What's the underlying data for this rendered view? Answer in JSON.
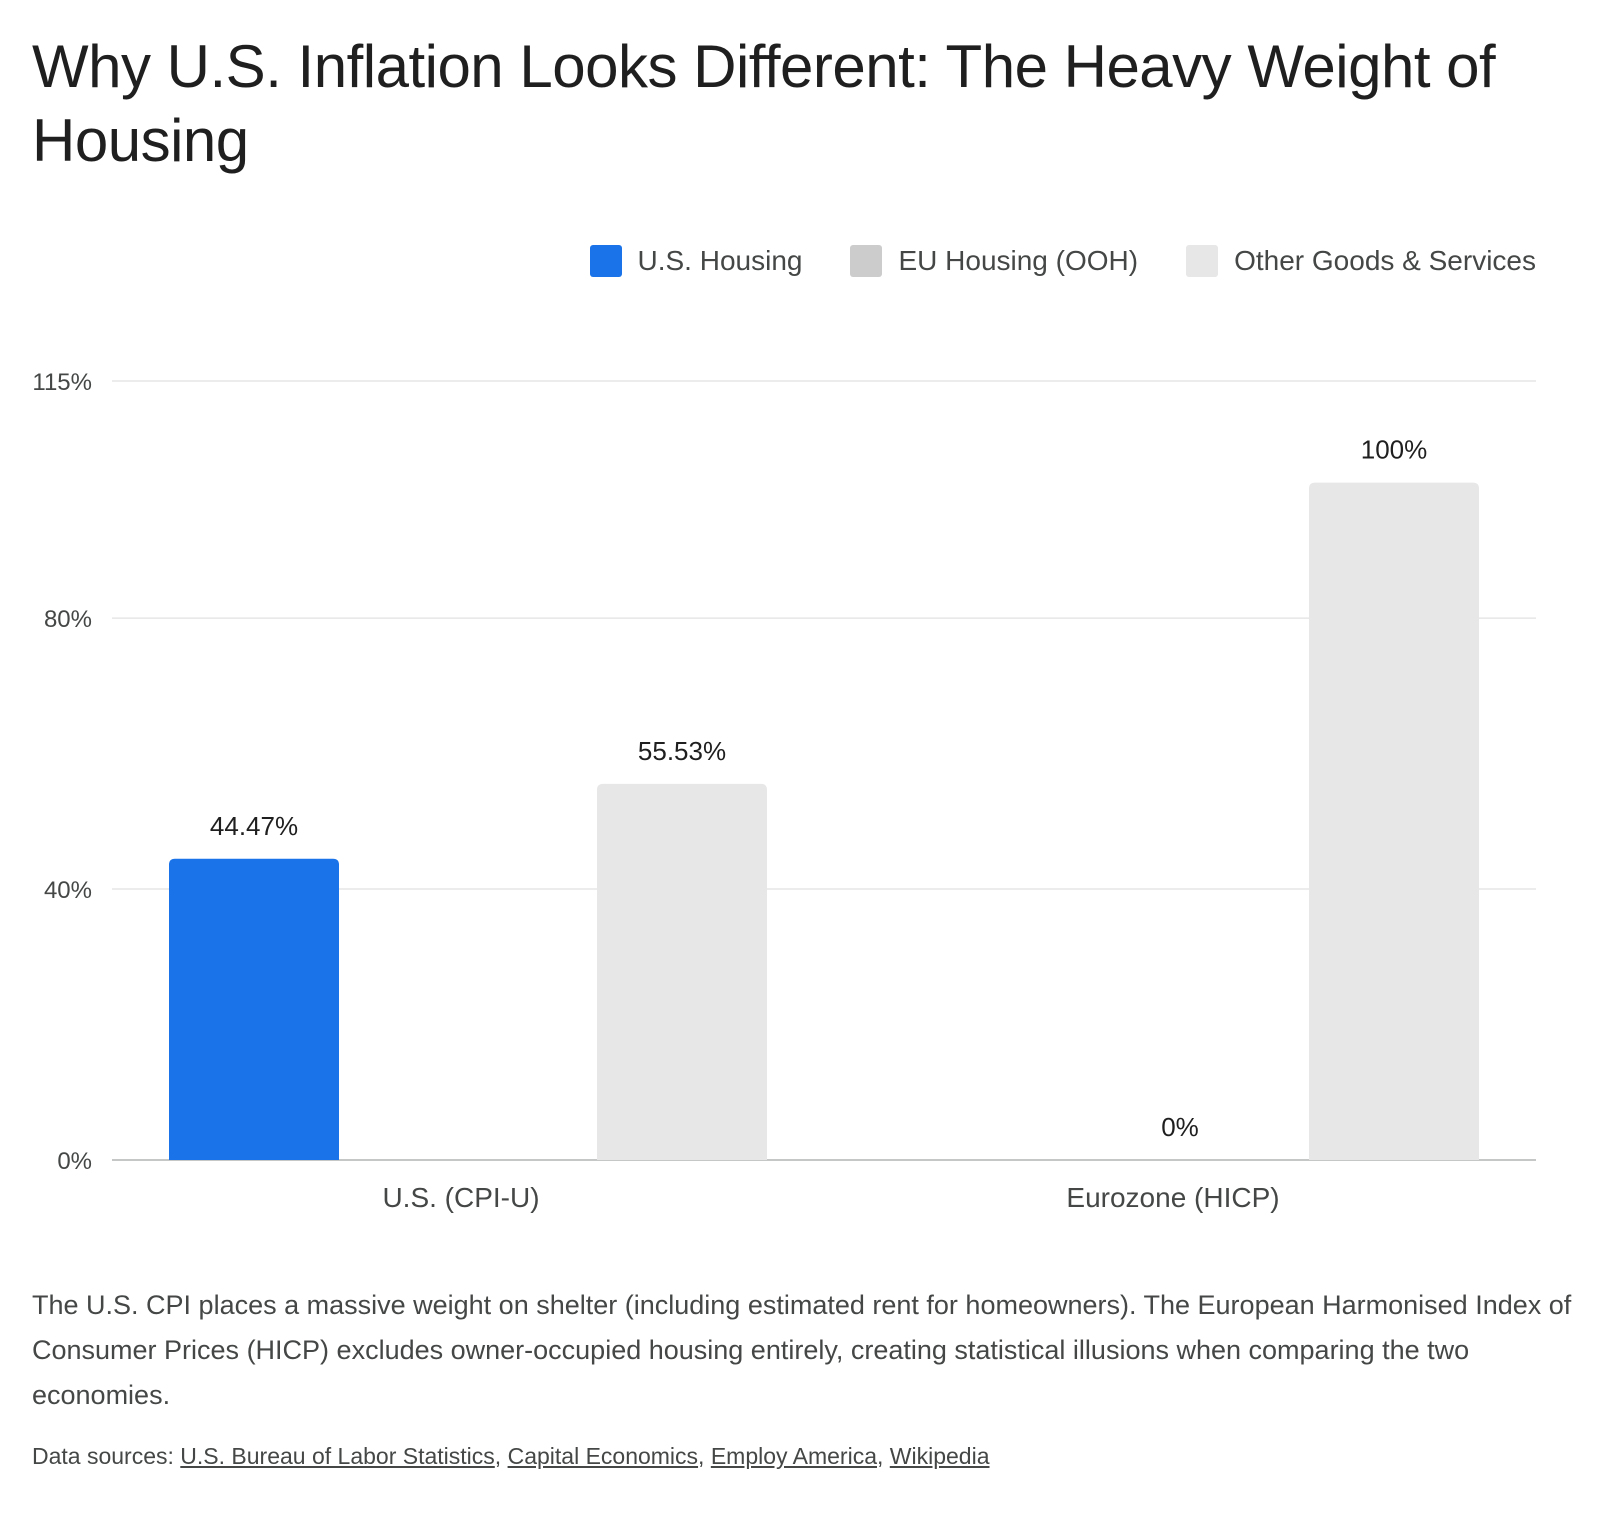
{
  "title": "Why U.S. Inflation Looks Different: The Heavy Weight of Housing",
  "colors": {
    "us_housing": "#1a73e8",
    "eu_housing": "#cccccc",
    "other": "#e6e7e6",
    "grid": "#e6e6e6",
    "axis": "#c4c7c5"
  },
  "chart_data": {
    "type": "bar",
    "categories": [
      "U.S. (CPI-U)",
      "Eurozone (HICP)"
    ],
    "series": [
      {
        "name": "U.S. Housing",
        "values": [
          44.47,
          null
        ],
        "labels": [
          "44.47%",
          ""
        ]
      },
      {
        "name": "EU Housing (OOH)",
        "values": [
          null,
          0
        ],
        "labels": [
          "",
          "0%"
        ]
      },
      {
        "name": "Other Goods & Services",
        "values": [
          55.53,
          100
        ],
        "labels": [
          "55.53%",
          "100%"
        ]
      }
    ],
    "yticks": [
      0,
      40,
      80,
      115
    ],
    "ytick_labels": [
      "0%",
      "40%",
      "80%",
      "115%"
    ],
    "ylim": [
      0,
      115
    ],
    "legend_position": "top-right",
    "grid": true
  },
  "legend": [
    {
      "label": "U.S. Housing",
      "color": "#1a73e8"
    },
    {
      "label": "EU Housing (OOH)",
      "color": "#cccccc"
    },
    {
      "label": "Other Goods & Services",
      "color": "#e6e7e6"
    }
  ],
  "description": "The U.S. CPI places a massive weight on shelter (including estimated rent for homeowners). The European Harmonised Index of Consumer Prices (HICP) excludes owner-occupied housing entirely, creating statistical illusions when comparing the two economies.",
  "sources": {
    "prefix": "Data sources:",
    "links": [
      "U.S. Bureau of Labor Statistics",
      "Capital Economics",
      "Employ America",
      "Wikipedia"
    ]
  }
}
